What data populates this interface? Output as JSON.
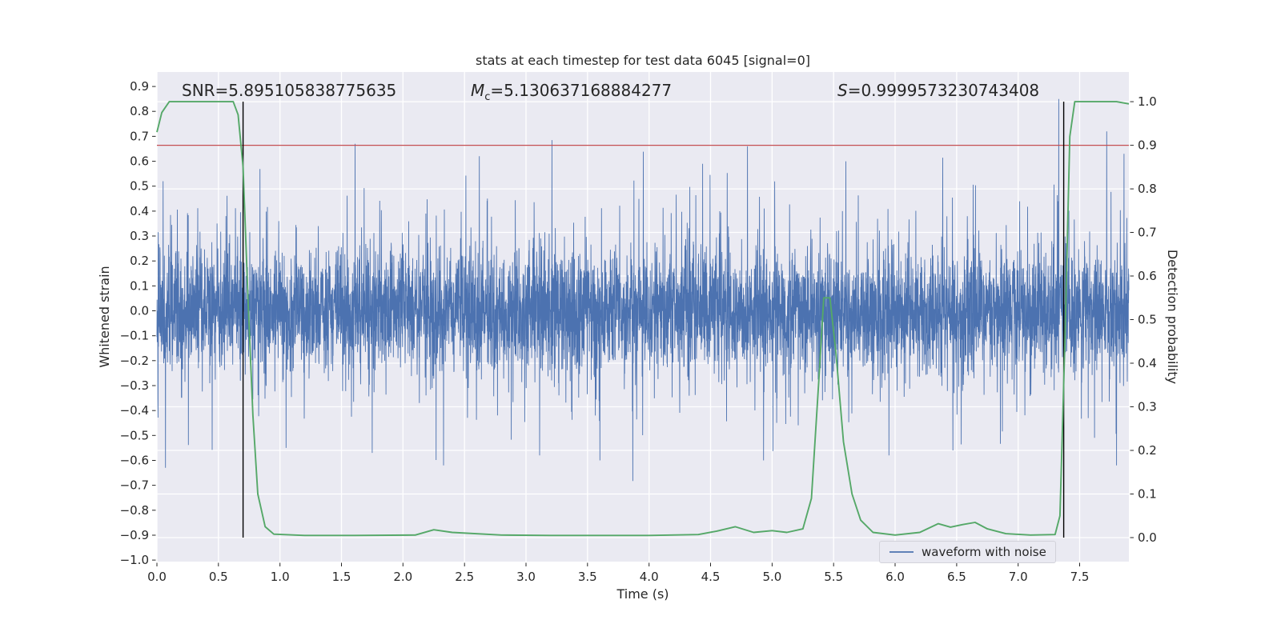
{
  "annotations": {
    "snr": "SNR=5.895105838775635",
    "mc_symbol": "M",
    "mc_sub": "c",
    "mc_value": "=5.130637168884277",
    "s_symbol": "S",
    "s_value": "=0.9999573230743408"
  },
  "chart_data": {
    "type": "line",
    "title": "stats at each timestep for test data 6045 [signal=0]",
    "xlabel": "Time (s)",
    "ylabel_left": "Whitened strain",
    "ylabel_right": "Detection probability",
    "legend_label": "waveform with noise",
    "x_range": [
      0,
      7.9
    ],
    "left_ylim": [
      -1.006,
      0.958
    ],
    "right_ylim": [
      -0.055,
      1.068
    ],
    "background": "#eaeaf2",
    "grid_color": "#ffffff",
    "colors": {
      "waveform": "#4c72b0",
      "probability": "#55a868",
      "threshold": "#c44e52",
      "event": "#000000"
    },
    "threshold": 0.9,
    "event_times": [
      0.7,
      7.37
    ],
    "x_tick_values": [
      0,
      0.5,
      1,
      1.5,
      2,
      2.5,
      3,
      3.5,
      4,
      4.5,
      5,
      5.5,
      6,
      6.5,
      7,
      7.5
    ],
    "x_tick_labels": [
      "0.0",
      "0.5",
      "1.0",
      "1.5",
      "2.0",
      "2.5",
      "3.0",
      "3.5",
      "4.0",
      "4.5",
      "5.0",
      "5.5",
      "6.0",
      "6.5",
      "7.0",
      "7.5"
    ],
    "left_tick_values": [
      0.9,
      0.8,
      0.7,
      0.6,
      0.5,
      0.4,
      0.3,
      0.2,
      0.1,
      0.0,
      -0.1,
      -0.2,
      -0.3,
      -0.4,
      -0.5,
      -0.6,
      -0.7,
      -0.8,
      -0.9,
      -1.0
    ],
    "left_tick_labels": [
      "0.9",
      "0.8",
      "0.7",
      "0.6",
      "0.5",
      "0.4",
      "0.3",
      "0.2",
      "0.1",
      "0.0",
      "−0.1",
      "−0.2",
      "−0.3",
      "−0.4",
      "−0.5",
      "−0.6",
      "−0.7",
      "−0.8",
      "−0.9",
      "−1.0"
    ],
    "right_tick_values": [
      1.0,
      0.9,
      0.8,
      0.7,
      0.6,
      0.5,
      0.4,
      0.3,
      0.2,
      0.1,
      0.0
    ],
    "right_tick_labels": [
      "1.0",
      "0.9",
      "0.8",
      "0.7",
      "0.6",
      "0.5",
      "0.4",
      "0.3",
      "0.2",
      "0.1",
      "0.0"
    ],
    "probability": [
      [
        0.0,
        0.93
      ],
      [
        0.04,
        0.975
      ],
      [
        0.1,
        1.0
      ],
      [
        0.35,
        1.0
      ],
      [
        0.62,
        1.0
      ],
      [
        0.66,
        0.97
      ],
      [
        0.7,
        0.85
      ],
      [
        0.74,
        0.55
      ],
      [
        0.78,
        0.28
      ],
      [
        0.82,
        0.1
      ],
      [
        0.88,
        0.025
      ],
      [
        0.95,
        0.008
      ],
      [
        1.2,
        0.005
      ],
      [
        1.6,
        0.005
      ],
      [
        2.1,
        0.006
      ],
      [
        2.25,
        0.018
      ],
      [
        2.4,
        0.012
      ],
      [
        2.8,
        0.006
      ],
      [
        3.2,
        0.005
      ],
      [
        3.6,
        0.005
      ],
      [
        4.0,
        0.005
      ],
      [
        4.4,
        0.007
      ],
      [
        4.55,
        0.015
      ],
      [
        4.7,
        0.025
      ],
      [
        4.85,
        0.012
      ],
      [
        5.0,
        0.016
      ],
      [
        5.12,
        0.012
      ],
      [
        5.25,
        0.02
      ],
      [
        5.32,
        0.09
      ],
      [
        5.38,
        0.36
      ],
      [
        5.42,
        0.55
      ],
      [
        5.47,
        0.55
      ],
      [
        5.52,
        0.42
      ],
      [
        5.58,
        0.22
      ],
      [
        5.65,
        0.1
      ],
      [
        5.72,
        0.04
      ],
      [
        5.82,
        0.012
      ],
      [
        6.0,
        0.006
      ],
      [
        6.2,
        0.012
      ],
      [
        6.35,
        0.032
      ],
      [
        6.45,
        0.024
      ],
      [
        6.55,
        0.03
      ],
      [
        6.65,
        0.035
      ],
      [
        6.75,
        0.02
      ],
      [
        6.9,
        0.009
      ],
      [
        7.1,
        0.006
      ],
      [
        7.3,
        0.007
      ],
      [
        7.34,
        0.05
      ],
      [
        7.38,
        0.45
      ],
      [
        7.42,
        0.92
      ],
      [
        7.46,
        1.0
      ],
      [
        7.6,
        1.0
      ],
      [
        7.8,
        1.0
      ],
      [
        7.9,
        0.995
      ]
    ],
    "noise": {
      "n": 6000,
      "seed": 42,
      "std_core": 0.11,
      "std_tail": 0.21,
      "tail_frac": 0.2,
      "clamp": 0.8,
      "spikes": [
        [
          0.05,
          0.52
        ],
        [
          0.07,
          -0.63
        ],
        [
          1.05,
          -0.55
        ],
        [
          1.61,
          0.67
        ],
        [
          1.75,
          -0.57
        ],
        [
          2.33,
          -0.62
        ],
        [
          2.62,
          0.62
        ],
        [
          3.11,
          -0.58
        ],
        [
          3.21,
          0.685
        ],
        [
          3.6,
          -0.6
        ],
        [
          4.8,
          0.66
        ],
        [
          4.93,
          -0.6
        ],
        [
          5.6,
          0.6
        ],
        [
          5.95,
          -0.58
        ],
        [
          6.47,
          -0.56
        ],
        [
          7.33,
          0.85
        ],
        [
          7.72,
          0.72
        ],
        [
          7.8,
          -0.62
        ],
        [
          7.86,
          0.63
        ]
      ]
    }
  }
}
